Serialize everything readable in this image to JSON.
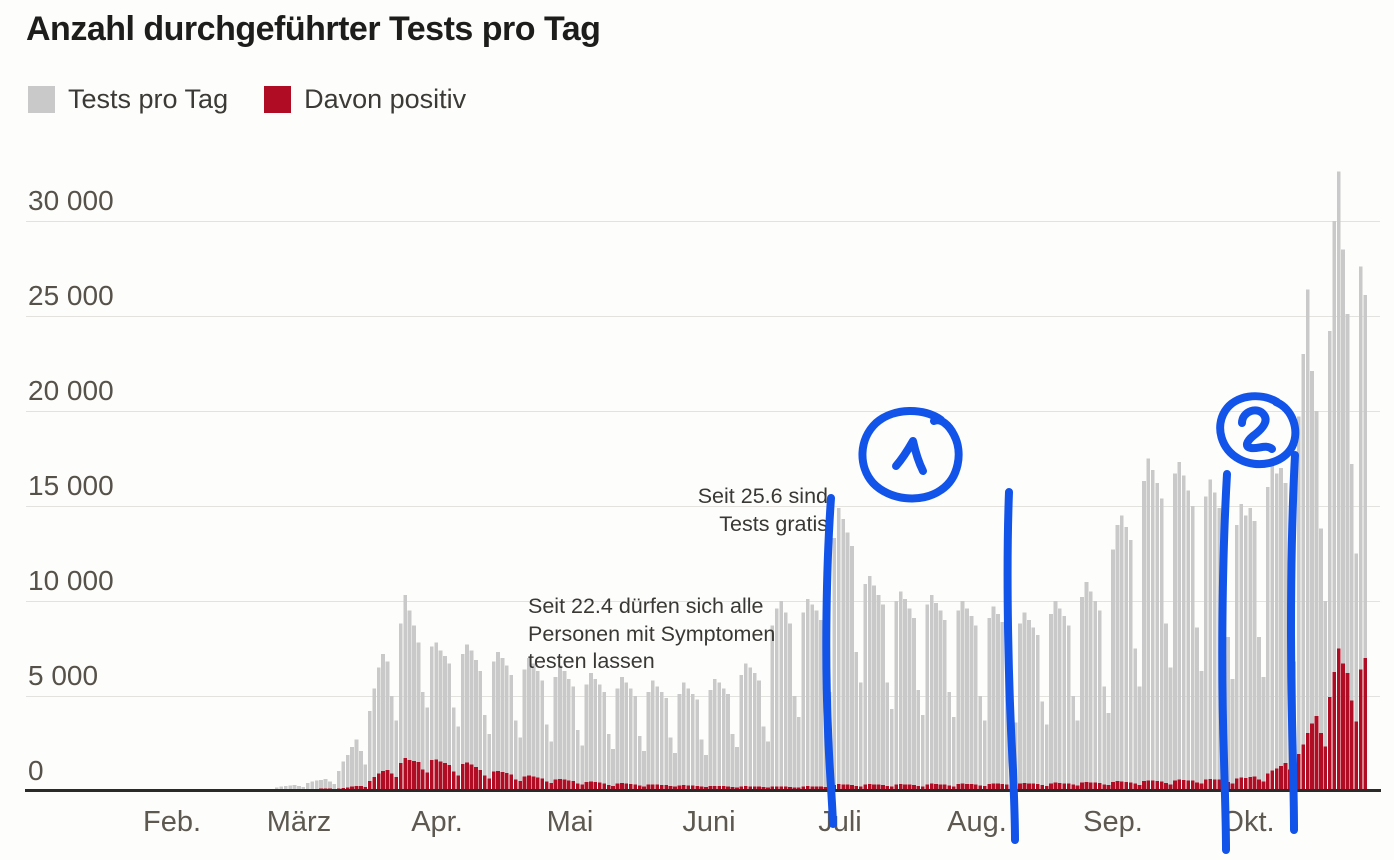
{
  "title": "Anzahl durchgeführter Tests pro Tag",
  "legend": {
    "tests_label": "Tests pro Tag",
    "positive_label": "Davon positiv"
  },
  "colors": {
    "background": "#fdfdfb",
    "bar_gray": "#c9c9c9",
    "bar_red": "#b00d24",
    "handdrawn_blue": "#1253ea"
  },
  "annotations": {
    "free_tests": {
      "line1": "Seit 25.6 sind",
      "line2": "Tests gratis"
    },
    "symptoms": {
      "line1": "Seit 22.4 dürfen sich alle",
      "line2": "Personen mit Symptomen",
      "line3": "testen lassen"
    }
  },
  "handdrawn": {
    "color": "#1253ea",
    "marks": [
      {
        "label": "1",
        "type": "circled-number"
      },
      {
        "label": "2",
        "type": "circled-number"
      },
      {
        "type": "vertical-line",
        "approx_date": "end of June"
      },
      {
        "type": "vertical-line",
        "approx_date": "early August"
      },
      {
        "type": "vertical-line",
        "approx_date": "late September"
      },
      {
        "type": "vertical-line",
        "approx_date": "mid October"
      }
    ]
  },
  "chart_data": {
    "type": "bar",
    "title": "Anzahl durchgeführter Tests pro Tag",
    "xlabel": "",
    "ylabel": "",
    "ylim": [
      0,
      32500
    ],
    "grid": true,
    "legend_position": "top-left",
    "y_ticks": [
      {
        "label": "0",
        "value": 0
      },
      {
        "label": "5 000",
        "value": 5000
      },
      {
        "label": "10 000",
        "value": 10000
      },
      {
        "label": "15 000",
        "value": 15000
      },
      {
        "label": "20 000",
        "value": 20000
      },
      {
        "label": "25 000",
        "value": 25000
      },
      {
        "label": "30 000",
        "value": 30000
      }
    ],
    "x_ticks": [
      "Feb.",
      "März",
      "Apr.",
      "Mai",
      "Juni",
      "Juli",
      "Aug.",
      "Sep.",
      "Okt."
    ],
    "start_date": "2020-02-24",
    "end_date": "2020-10-27",
    "series": [
      {
        "name": "Tests pro Tag",
        "values": [
          90,
          120,
          150,
          180,
          210,
          160,
          110,
          320,
          390,
          440,
          480,
          520,
          390,
          260,
          950,
          1450,
          1800,
          2200,
          2600,
          2000,
          1300,
          4100,
          5300,
          6400,
          7100,
          6700,
          4900,
          3600,
          8700,
          10200,
          9400,
          8600,
          7700,
          5100,
          4300,
          7500,
          7700,
          7300,
          7000,
          6600,
          4300,
          3300,
          7100,
          7600,
          7300,
          6800,
          6200,
          3900,
          2900,
          6700,
          7200,
          6900,
          6500,
          6000,
          3600,
          2700,
          6300,
          6900,
          6600,
          6200,
          5700,
          3400,
          2500,
          5900,
          6500,
          6200,
          5800,
          5400,
          3100,
          2300,
          5500,
          6100,
          5800,
          5500,
          5100,
          2900,
          2100,
          5300,
          5900,
          5600,
          5300,
          4900,
          2800,
          2000,
          5100,
          5700,
          5400,
          5100,
          4800,
          2700,
          1900,
          5000,
          5600,
          5300,
          5000,
          4700,
          2600,
          1800,
          5200,
          5800,
          5600,
          5300,
          5000,
          2900,
          2200,
          6000,
          6600,
          6400,
          6100,
          5700,
          3300,
          2500,
          8600,
          9500,
          9900,
          9300,
          8700,
          4900,
          3800,
          9300,
          10000,
          9700,
          9400,
          8900,
          6400,
          5100,
          13200,
          14800,
          14200,
          13500,
          12800,
          7200,
          5600,
          10800,
          11200,
          10700,
          10200,
          9700,
          5600,
          4200,
          9900,
          10400,
          10000,
          9500,
          9000,
          5200,
          3900,
          9700,
          10200,
          9800,
          9400,
          8900,
          5100,
          3800,
          9400,
          9900,
          9500,
          9100,
          8600,
          4900,
          3600,
          9000,
          9600,
          9200,
          8800,
          8400,
          4800,
          3500,
          8700,
          9300,
          8900,
          8500,
          8100,
          4600,
          3400,
          9200,
          9900,
          9500,
          9100,
          8600,
          4900,
          3600,
          10100,
          10900,
          10400,
          9900,
          9400,
          5400,
          4000,
          12600,
          13900,
          14400,
          13800,
          13100,
          7400,
          5400,
          16200,
          17400,
          16800,
          16100,
          15300,
          8700,
          6400,
          16600,
          17200,
          16500,
          15700,
          14900,
          8500,
          6200,
          15400,
          16300,
          15600,
          14800,
          14000,
          8000,
          5800,
          13900,
          15000,
          14400,
          14800,
          14100,
          8000,
          5900,
          15900,
          17300,
          16600,
          16900,
          16100,
          9200,
          6700,
          19600,
          22900,
          26300,
          22000,
          19900,
          13700,
          9900,
          24100,
          29900,
          32500,
          28400,
          25000,
          17100,
          12400,
          27500,
          26000
        ]
      },
      {
        "name": "Davon positiv",
        "values": [
          1,
          2,
          2,
          3,
          4,
          3,
          2,
          8,
          11,
          13,
          16,
          19,
          15,
          10,
          35,
          60,
          90,
          130,
          170,
          150,
          100,
          420,
          620,
          820,
          960,
          1010,
          820,
          620,
          1380,
          1620,
          1520,
          1470,
          1410,
          1020,
          870,
          1520,
          1560,
          1460,
          1360,
          1260,
          910,
          710,
          1310,
          1400,
          1300,
          1160,
          1010,
          710,
          560,
          910,
          960,
          900,
          830,
          760,
          510,
          410,
          660,
          710,
          660,
          610,
          560,
          390,
          310,
          490,
          530,
          490,
          450,
          410,
          290,
          230,
          360,
          390,
          360,
          330,
          300,
          220,
          170,
          290,
          310,
          290,
          270,
          250,
          180,
          140,
          230,
          250,
          230,
          210,
          200,
          150,
          120,
          190,
          210,
          190,
          180,
          170,
          130,
          100,
          150,
          170,
          160,
          150,
          140,
          110,
          80,
          130,
          150,
          140,
          130,
          120,
          100,
          70,
          120,
          140,
          130,
          120,
          110,
          90,
          70,
          130,
          150,
          140,
          140,
          130,
          100,
          80,
          210,
          260,
          240,
          230,
          210,
          160,
          120,
          230,
          260,
          240,
          230,
          210,
          160,
          130,
          240,
          270,
          250,
          240,
          220,
          170,
          130,
          250,
          280,
          260,
          250,
          230,
          180,
          140,
          260,
          290,
          270,
          260,
          240,
          190,
          150,
          270,
          300,
          280,
          270,
          250,
          200,
          160,
          280,
          310,
          290,
          280,
          260,
          210,
          170,
          300,
          330,
          310,
          300,
          280,
          230,
          180,
          330,
          360,
          340,
          330,
          310,
          250,
          200,
          370,
          410,
          390,
          370,
          350,
          280,
          220,
          420,
          460,
          440,
          420,
          400,
          320,
          250,
          460,
          500,
          480,
          460,
          440,
          350,
          280,
          490,
          530,
          510,
          490,
          470,
          380,
          300,
          540,
          600,
          580,
          620,
          660,
          500,
          400,
          820,
          970,
          1070,
          1220,
          1370,
          1020,
          820,
          1850,
          2350,
          2950,
          3450,
          3850,
          2950,
          2250,
          4850,
          6150,
          7400,
          6600,
          6100,
          4650,
          3550,
          6300,
          6900
        ]
      }
    ]
  }
}
